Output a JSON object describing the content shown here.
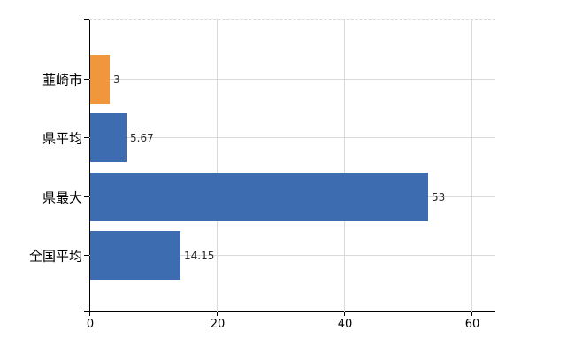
{
  "chart_data": {
    "type": "bar",
    "orientation": "horizontal",
    "title": "",
    "xlabel": "",
    "ylabel": "",
    "grid": true,
    "legend": false,
    "categories": [
      "韮崎市",
      "県平均",
      "県最大",
      "全国平均"
    ],
    "values": [
      3,
      5.67,
      53,
      14.15
    ],
    "value_labels": [
      "3",
      "5.67",
      "53",
      "14.15"
    ],
    "bar_colors": [
      "#f0963c",
      "#3d6cb0",
      "#3d6cb0",
      "#3d6cb0"
    ],
    "xticks": [
      0,
      20,
      40,
      60
    ],
    "xtick_labels": [
      "0",
      "20",
      "40",
      "60"
    ],
    "xlim": [
      0,
      63.75
    ]
  },
  "colors": {
    "highlight_bar": "#f0963c",
    "default_bar": "#3d6cb0",
    "gridline": "#d9d9d9",
    "axis": "#000000",
    "background": "#ffffff"
  }
}
